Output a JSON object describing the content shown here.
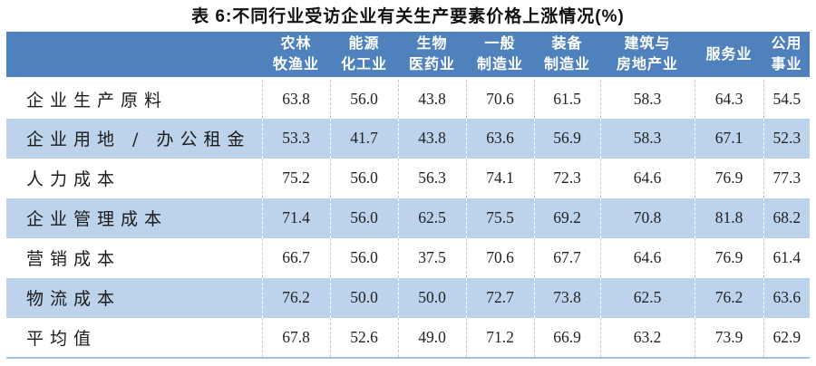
{
  "page_title": "表 6:不同行业受访企业有关生产要素价格上涨情况(%)",
  "colors": {
    "header_bg": "#4F81BD",
    "header_text": "#FFFFFF",
    "stripe_bg": "#BCD3EB",
    "row_bg": "#FFFFFF",
    "divider_on_white": "#B3CBE6",
    "divider_on_stripe": "#FFFFFF",
    "bottom_border": "#A5C0DE",
    "body_text": "#222222"
  },
  "table": {
    "columns": [
      {
        "lines": [
          "农林",
          "牧渔业"
        ]
      },
      {
        "lines": [
          "能源",
          "化工业"
        ]
      },
      {
        "lines": [
          "生物",
          "医药业"
        ]
      },
      {
        "lines": [
          "一般",
          "制造业"
        ]
      },
      {
        "lines": [
          "装备",
          "制造业"
        ]
      },
      {
        "lines": [
          "建筑与",
          "房地产业"
        ]
      },
      {
        "lines": [
          "服务业"
        ]
      },
      {
        "lines": [
          "公用",
          "事业"
        ]
      }
    ],
    "rows": [
      {
        "label": "企业生产原料",
        "values": [
          "63.8",
          "56.0",
          "43.8",
          "70.6",
          "61.5",
          "58.3",
          "64.3",
          "54.5"
        ]
      },
      {
        "label": "企业用地 / 办公租金",
        "values": [
          "53.3",
          "41.7",
          "43.8",
          "63.6",
          "56.9",
          "58.3",
          "67.1",
          "52.3"
        ]
      },
      {
        "label": "人力成本",
        "values": [
          "75.2",
          "56.0",
          "56.3",
          "74.1",
          "72.3",
          "64.6",
          "76.9",
          "77.3"
        ]
      },
      {
        "label": "企业管理成本",
        "values": [
          "71.4",
          "56.0",
          "62.5",
          "75.5",
          "69.2",
          "70.8",
          "81.8",
          "68.2"
        ]
      },
      {
        "label": "营销成本",
        "values": [
          "66.7",
          "56.0",
          "37.5",
          "70.6",
          "67.7",
          "64.6",
          "76.9",
          "61.4"
        ]
      },
      {
        "label": "物流成本",
        "values": [
          "76.2",
          "50.0",
          "50.0",
          "72.7",
          "73.8",
          "62.5",
          "76.2",
          "63.6"
        ]
      },
      {
        "label": "平均值",
        "values": [
          "67.8",
          "52.6",
          "49.0",
          "71.2",
          "66.9",
          "63.2",
          "73.9",
          "62.9"
        ]
      }
    ]
  },
  "chart_data": {
    "type": "table",
    "title": "表 6:不同行业受访企业有关生产要素价格上涨情况(%)",
    "categories": [
      "农林牧渔业",
      "能源化工业",
      "生物医药业",
      "一般制造业",
      "装备制造业",
      "建筑与房地产业",
      "服务业",
      "公用事业"
    ],
    "series": [
      {
        "name": "企业生产原料",
        "values": [
          63.8,
          56.0,
          43.8,
          70.6,
          61.5,
          58.3,
          64.3,
          54.5
        ]
      },
      {
        "name": "企业用地 / 办公租金",
        "values": [
          53.3,
          41.7,
          43.8,
          63.6,
          56.9,
          58.3,
          67.1,
          52.3
        ]
      },
      {
        "name": "人力成本",
        "values": [
          75.2,
          56.0,
          56.3,
          74.1,
          72.3,
          64.6,
          76.9,
          77.3
        ]
      },
      {
        "name": "企业管理成本",
        "values": [
          71.4,
          56.0,
          62.5,
          75.5,
          69.2,
          70.8,
          81.8,
          68.2
        ]
      },
      {
        "name": "营销成本",
        "values": [
          66.7,
          56.0,
          37.5,
          70.6,
          67.7,
          64.6,
          76.9,
          61.4
        ]
      },
      {
        "name": "物流成本",
        "values": [
          76.2,
          50.0,
          50.0,
          72.7,
          73.8,
          62.5,
          76.2,
          63.6
        ]
      },
      {
        "name": "平均值",
        "values": [
          67.8,
          52.6,
          49.0,
          71.2,
          66.9,
          63.2,
          73.9,
          62.9
        ]
      }
    ]
  }
}
